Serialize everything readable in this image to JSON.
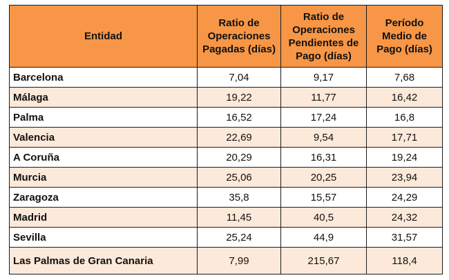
{
  "table": {
    "headers": [
      "Entidad",
      "Ratio de Operaciones Pagadas (días)",
      "Ratio de Operaciones Pendientes de Pago (días)",
      "Período Medio de Pago (días)"
    ],
    "rows": [
      [
        "Barcelona",
        "7,04",
        "9,17",
        "7,68"
      ],
      [
        "Málaga",
        "19,22",
        "11,77",
        "16,42"
      ],
      [
        "Palma",
        "16,52",
        "17,24",
        "16,8"
      ],
      [
        "Valencia",
        "22,69",
        "9,54",
        "17,71"
      ],
      [
        "A Coruña",
        "20,29",
        "16,31",
        "19,24"
      ],
      [
        "Murcia",
        "25,06",
        "20,25",
        "23,94"
      ],
      [
        "Zaragoza",
        "35,8",
        "15,57",
        "24,29"
      ],
      [
        "Madrid",
        "11,45",
        "40,5",
        "24,32"
      ],
      [
        "Sevilla",
        "25,24",
        "44,9",
        "31,57"
      ],
      [
        "Las Palmas de Gran Canaria",
        "7,99",
        "215,67",
        "118,4"
      ]
    ]
  },
  "colors": {
    "header_bg": "#f79646",
    "row_alt_bg": "#fde9d9",
    "row_bg": "#ffffff",
    "border": "#1a1a1a"
  }
}
